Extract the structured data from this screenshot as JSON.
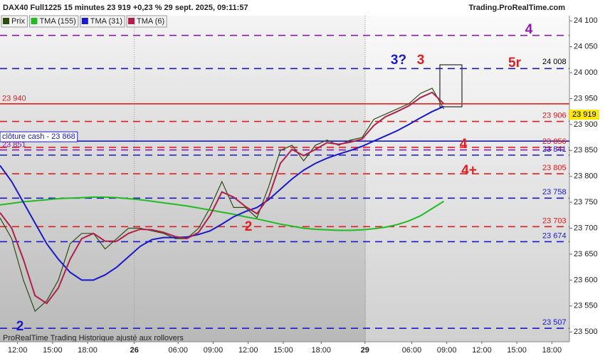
{
  "chart_data": {
    "type": "line",
    "title": "DAX40 Full1225 15 minutes 23 919 +0,23 % 29 sept. 2025, 09:11:57",
    "source": "Trading.ProRealTime.com",
    "footer": "ProRealTime Trading  Historique ajusté aux rollovers",
    "xlim": [
      0,
      195
    ],
    "xticks": [
      {
        "value": 6,
        "label": "12:00"
      },
      {
        "value": 18,
        "label": "15:00"
      },
      {
        "value": 30,
        "label": "18:00"
      },
      {
        "value": 46,
        "label": "26"
      },
      {
        "value": 61,
        "label": "06:00"
      },
      {
        "value": 73,
        "label": "09:00"
      },
      {
        "value": 85,
        "label": "12:00"
      },
      {
        "value": 97,
        "label": "15:00"
      },
      {
        "value": 110,
        "label": "18:00"
      },
      {
        "value": 125,
        "label": "29"
      },
      {
        "value": 141,
        "label": "06:00"
      },
      {
        "value": 153,
        "label": "09:00"
      },
      {
        "value": 165,
        "label": "12:00"
      },
      {
        "value": 177,
        "label": "15:00"
      },
      {
        "value": 189,
        "label": "18:00"
      }
    ],
    "ylim": [
      23481,
      24110
    ],
    "yticks": [
      {
        "value": 23500,
        "label": "23 500"
      },
      {
        "value": 23550,
        "label": "23 550"
      },
      {
        "value": 23600,
        "label": "23 600"
      },
      {
        "value": 23650,
        "label": "23 650"
      },
      {
        "value": 23700,
        "label": "23 700"
      },
      {
        "value": 23750,
        "label": "23 750"
      },
      {
        "value": 23800,
        "label": "23 800"
      },
      {
        "value": 23850,
        "label": "23 850"
      },
      {
        "value": 23900,
        "label": "23 900"
      },
      {
        "value": 23950,
        "label": "23 950"
      },
      {
        "value": 24000,
        "label": "24 000"
      },
      {
        "value": 24050,
        "label": "24 050"
      },
      {
        "value": 24100,
        "label": "24 100"
      }
    ],
    "x": [
      0,
      4,
      8,
      12,
      16,
      20,
      24,
      28,
      32,
      36,
      40,
      44,
      48,
      52,
      56,
      60,
      64,
      68,
      72,
      76,
      80,
      84,
      88,
      92,
      96,
      100,
      104,
      108,
      112,
      116,
      120,
      124,
      128,
      132,
      136,
      140,
      144,
      148,
      152
    ],
    "series": [
      {
        "name": "Prix",
        "color": "#2d4d10",
        "values": [
          23720,
          23680,
          23600,
          23540,
          23560,
          23600,
          23670,
          23690,
          23690,
          23660,
          23680,
          23700,
          23700,
          23695,
          23690,
          23680,
          23680,
          23700,
          23740,
          23790,
          23740,
          23740,
          23720,
          23780,
          23850,
          23860,
          23830,
          23860,
          23870,
          23860,
          23870,
          23875,
          23910,
          23920,
          23930,
          23940,
          23960,
          23970,
          23930
        ]
      },
      {
        "name": "TMA (155)",
        "color": "#22bb22",
        "values": [
          23745,
          23748,
          23751,
          23753,
          23755,
          23757,
          23758,
          23759,
          23760,
          23760,
          23759,
          23757,
          23755,
          23752,
          23749,
          23746,
          23743,
          23739,
          23735,
          23731,
          23727,
          23722,
          23718,
          23713,
          23708,
          23704,
          23700,
          23698,
          23697,
          23696,
          23696,
          23697,
          23699,
          23702,
          23707,
          23714,
          23724,
          23738,
          23752
        ]
      },
      {
        "name": "TMA (31)",
        "color": "#1a1acc",
        "values": [
          23821,
          23790,
          23750,
          23710,
          23670,
          23640,
          23615,
          23600,
          23600,
          23610,
          23625,
          23645,
          23665,
          23678,
          23682,
          23682,
          23683,
          23688,
          23695,
          23708,
          23722,
          23732,
          23740,
          23755,
          23775,
          23795,
          23812,
          23825,
          23835,
          23843,
          23850,
          23858,
          23868,
          23878,
          23888,
          23900,
          23913,
          23925,
          23935
        ]
      },
      {
        "name": "TMA (6)",
        "color": "#b0204a",
        "values": [
          23730,
          23700,
          23640,
          23570,
          23555,
          23585,
          23640,
          23680,
          23690,
          23675,
          23675,
          23690,
          23698,
          23697,
          23692,
          23684,
          23680,
          23692,
          23725,
          23770,
          23760,
          23742,
          23728,
          23760,
          23825,
          23852,
          23840,
          23852,
          23865,
          23862,
          23866,
          23872,
          23898,
          23915,
          23925,
          23936,
          23952,
          23962,
          23940
        ]
      }
    ],
    "levels": [
      {
        "value": 24072,
        "color": "#8a1ab0",
        "style": "dashed"
      },
      {
        "value": 24008,
        "label": "24 008",
        "color": "#1a1acc",
        "style": "dashed",
        "side": "right"
      },
      {
        "value": 23940,
        "label": "23 940",
        "color": "#e02020",
        "style": "solid",
        "side": "left"
      },
      {
        "value": 23906,
        "label": "23 906",
        "color": "#e02020",
        "style": "dashed",
        "side": "right"
      },
      {
        "value": 23868,
        "label": "clôture cash - 23 868",
        "color": "#1a1acc",
        "style": "solid",
        "side": "left"
      },
      {
        "value": 23856,
        "label": "23 856",
        "color": "#e02020",
        "style": "dashed",
        "side": "right"
      },
      {
        "value": 23851,
        "label": "23 851",
        "color": "#8a1ab0",
        "style": "dashed",
        "side": "left"
      },
      {
        "value": 23841,
        "label": "23 841",
        "color": "#1a1acc",
        "style": "dashed",
        "side": "right"
      },
      {
        "value": 23805,
        "label": "23 805",
        "color": "#e02020",
        "style": "dashed",
        "side": "right"
      },
      {
        "value": 23758,
        "label": "23 758",
        "color": "#1a1acc",
        "style": "dashed",
        "side": "right"
      },
      {
        "value": 23703,
        "label": "23 703",
        "color": "#e02020",
        "style": "dashed",
        "side": "right"
      },
      {
        "value": 23674,
        "label": "23 674",
        "color": "#1a1acc",
        "style": "dashed",
        "side": "right"
      },
      {
        "value": 23507,
        "label": "23 507",
        "color": "#1a1acc",
        "style": "dashed",
        "side": "right"
      }
    ],
    "current": {
      "value": 23919,
      "label": "23 919"
    },
    "annotations": [
      {
        "text": "4",
        "color": "#8a1ab0"
      },
      {
        "text": "3?",
        "color": "#1a1acc"
      },
      {
        "text": "3",
        "color": "#e02020"
      },
      {
        "text": "5r",
        "color": "#e02020"
      },
      {
        "text": "4",
        "color": "#e02020"
      },
      {
        "text": "4+",
        "color": "#e02020"
      },
      {
        "text": "2",
        "color": "#e02020"
      },
      {
        "text": "2",
        "color": "#1a1acc"
      }
    ]
  }
}
